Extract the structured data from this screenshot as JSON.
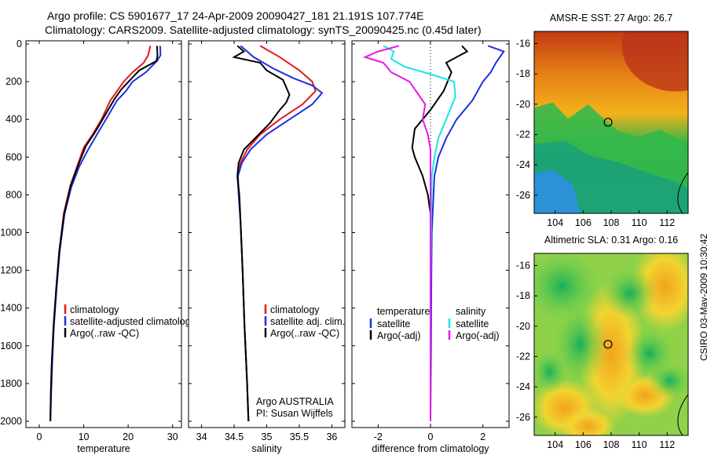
{
  "header": {
    "line1": "Argo profile: CS 5901677_17 24-Apr-2009 20090427_181 21.191S 107.774E",
    "line2": "Climatology: CARS2009. Satellite-adjusted climatology: synTS_20090425.nc (0.45d later)"
  },
  "side_text": "CSIRO 03-May-2009 10:30:42",
  "colors": {
    "climatology": "#e31a1c",
    "satellite": "#1f2fe0",
    "argo": "#000000",
    "temperature_sat": "#1f2fe0",
    "salinity_sat": "#19e6e6",
    "salinity_argo": "#e61ae6"
  },
  "chart_data": [
    {
      "type": "line",
      "id": "temperature",
      "xlabel": "temperature",
      "ylabel": "",
      "xlim": [
        -3,
        32
      ],
      "ylim": [
        2050,
        0
      ],
      "xticks": [
        0,
        10,
        20,
        30
      ],
      "yticks": [
        0,
        200,
        400,
        600,
        800,
        1000,
        1200,
        1400,
        1600,
        1800,
        2000
      ],
      "legend_position": "lower-right",
      "legend": [
        "climatology",
        "satellite-adjusted climatology",
        "Argo(..raw -QC)"
      ],
      "series": [
        {
          "name": "climatology",
          "color": "#e31a1c",
          "points": [
            [
              25.0,
              10
            ],
            [
              24.5,
              60
            ],
            [
              23.5,
              100
            ],
            [
              21.0,
              150
            ],
            [
              19.0,
              200
            ],
            [
              17.5,
              250
            ],
            [
              16.0,
              300
            ],
            [
              14.0,
              400
            ],
            [
              12.0,
              480
            ],
            [
              10.0,
              550
            ],
            [
              8.5,
              650
            ],
            [
              7.0,
              750
            ],
            [
              5.5,
              900
            ],
            [
              4.5,
              1100
            ],
            [
              3.8,
              1300
            ],
            [
              3.2,
              1500
            ],
            [
              2.8,
              1700
            ],
            [
              2.6,
              1850
            ],
            [
              2.5,
              2000
            ]
          ]
        },
        {
          "name": "satellite-adjusted climatology",
          "color": "#1f2fe0",
          "points": [
            [
              27.2,
              10
            ],
            [
              27.3,
              60
            ],
            [
              26.5,
              90
            ],
            [
              24.0,
              150
            ],
            [
              21.0,
              200
            ],
            [
              19.5,
              250
            ],
            [
              17.5,
              300
            ],
            [
              15.0,
              400
            ],
            [
              13.0,
              480
            ],
            [
              11.0,
              560
            ],
            [
              9.0,
              650
            ],
            [
              7.2,
              760
            ],
            [
              5.7,
              900
            ],
            [
              4.6,
              1100
            ],
            [
              3.9,
              1300
            ],
            [
              3.3,
              1500
            ],
            [
              2.9,
              1700
            ],
            [
              2.7,
              1850
            ],
            [
              2.5,
              2000
            ]
          ]
        },
        {
          "name": "Argo(..raw -QC)",
          "color": "#000000",
          "points": [
            [
              26.5,
              10
            ],
            [
              26.6,
              60
            ],
            [
              26.4,
              90
            ],
            [
              22.5,
              140
            ],
            [
              20.5,
              190
            ],
            [
              18.5,
              240
            ],
            [
              17.0,
              290
            ],
            [
              14.5,
              390
            ],
            [
              12.5,
              470
            ],
            [
              10.5,
              540
            ],
            [
              8.8,
              640
            ],
            [
              7.1,
              750
            ],
            [
              5.6,
              900
            ],
            [
              4.5,
              1100
            ],
            [
              3.8,
              1300
            ],
            [
              3.2,
              1500
            ],
            [
              2.8,
              1700
            ],
            [
              2.6,
              1850
            ],
            [
              2.5,
              2000
            ]
          ]
        }
      ]
    },
    {
      "type": "line",
      "id": "salinity",
      "xlabel": "salinity",
      "ylabel": "",
      "xlim": [
        33.8,
        36.2
      ],
      "ylim": [
        2050,
        0
      ],
      "xticks": [
        34,
        34.5,
        35,
        35.5,
        36
      ],
      "legend_position": "lower-right",
      "legend": [
        "climatology",
        "satellite adj. clim.",
        "Argo(..raw -QC)"
      ],
      "annotation": [
        "Argo AUSTRALIA",
        "PI: Susan Wijffels"
      ],
      "series": [
        {
          "name": "climatology",
          "color": "#e31a1c",
          "points": [
            [
              34.9,
              10
            ],
            [
              35.2,
              70
            ],
            [
              35.5,
              140
            ],
            [
              35.7,
              200
            ],
            [
              35.75,
              250
            ],
            [
              35.55,
              320
            ],
            [
              35.2,
              400
            ],
            [
              34.9,
              480
            ],
            [
              34.7,
              560
            ],
            [
              34.6,
              630
            ],
            [
              34.55,
              700
            ],
            [
              34.57,
              800
            ],
            [
              34.6,
              950
            ],
            [
              34.63,
              1200
            ],
            [
              34.66,
              1500
            ],
            [
              34.7,
              1800
            ],
            [
              34.72,
              2000
            ]
          ]
        },
        {
          "name": "satellite adj. clim.",
          "color": "#1f2fe0",
          "points": [
            [
              34.6,
              10
            ],
            [
              34.8,
              70
            ],
            [
              35.1,
              130
            ],
            [
              35.4,
              180
            ],
            [
              35.7,
              220
            ],
            [
              35.85,
              260
            ],
            [
              35.7,
              320
            ],
            [
              35.35,
              400
            ],
            [
              35.0,
              480
            ],
            [
              34.75,
              560
            ],
            [
              34.62,
              630
            ],
            [
              34.56,
              700
            ],
            [
              34.57,
              800
            ],
            [
              34.6,
              950
            ],
            [
              34.63,
              1200
            ],
            [
              34.66,
              1500
            ],
            [
              34.7,
              1800
            ],
            [
              34.72,
              2000
            ]
          ]
        },
        {
          "name": "Argo(..raw -QC)",
          "color": "#000000",
          "points": [
            [
              34.55,
              10
            ],
            [
              34.65,
              40
            ],
            [
              34.5,
              70
            ],
            [
              34.9,
              100
            ],
            [
              35.0,
              140
            ],
            [
              35.25,
              190
            ],
            [
              35.3,
              230
            ],
            [
              35.35,
              270
            ],
            [
              35.3,
              310
            ],
            [
              35.2,
              350
            ],
            [
              35.05,
              420
            ],
            [
              34.85,
              490
            ],
            [
              34.65,
              560
            ],
            [
              34.57,
              630
            ],
            [
              34.55,
              700
            ],
            [
              34.58,
              800
            ],
            [
              34.6,
              950
            ],
            [
              34.63,
              1200
            ],
            [
              34.66,
              1500
            ],
            [
              34.7,
              1800
            ],
            [
              34.72,
              2000
            ]
          ]
        }
      ]
    },
    {
      "type": "line",
      "id": "difference",
      "xlabel": "difference from climatology",
      "ylabel": "",
      "xlim": [
        -3,
        3
      ],
      "ylim": [
        2050,
        0
      ],
      "xticks": [
        -2,
        0,
        2
      ],
      "legend_position": "lower-right",
      "legend_groups": [
        {
          "title": "temperature",
          "items": [
            "satellite",
            "Argo(-adj)"
          ]
        },
        {
          "title": "salinity",
          "items": [
            "satellite",
            "Argo(-adj)"
          ]
        }
      ],
      "series": [
        {
          "name": "temperature satellite",
          "color": "#1f2fe0",
          "points": [
            [
              2.2,
              10
            ],
            [
              2.8,
              40
            ],
            [
              2.5,
              100
            ],
            [
              2.3,
              150
            ],
            [
              2.0,
              200
            ],
            [
              1.6,
              300
            ],
            [
              1.0,
              400
            ],
            [
              0.6,
              500
            ],
            [
              0.3,
              600
            ],
            [
              0.15,
              700
            ],
            [
              0.1,
              850
            ],
            [
              0.05,
              1000
            ],
            [
              0.03,
              1300
            ],
            [
              0.02,
              1600
            ],
            [
              0.0,
              2000
            ]
          ]
        },
        {
          "name": "temperature Argo(-adj)",
          "color": "#000000",
          "points": [
            [
              1.2,
              10
            ],
            [
              1.4,
              40
            ],
            [
              1.0,
              70
            ],
            [
              0.6,
              100
            ],
            [
              0.8,
              150
            ],
            [
              0.5,
              250
            ],
            [
              0.0,
              350
            ],
            [
              -0.6,
              450
            ],
            [
              -0.7,
              550
            ],
            [
              -0.6,
              600
            ],
            [
              -0.3,
              700
            ],
            [
              -0.1,
              800
            ],
            [
              0.0,
              900
            ],
            [
              0.0,
              1300
            ],
            [
              0.0,
              1600
            ],
            [
              0.0,
              2000
            ]
          ]
        },
        {
          "name": "salinity satellite",
          "color": "#19e6e6",
          "points": [
            [
              -1.8,
              10
            ],
            [
              -1.4,
              40
            ],
            [
              -1.5,
              80
            ],
            [
              -1.0,
              120
            ],
            [
              0.0,
              160
            ],
            [
              0.9,
              200
            ],
            [
              0.95,
              280
            ],
            [
              0.6,
              400
            ],
            [
              0.3,
              500
            ],
            [
              0.15,
              600
            ],
            [
              0.05,
              700
            ],
            [
              0.03,
              850
            ],
            [
              0.02,
              1000
            ],
            [
              0.0,
              1300
            ],
            [
              0.0,
              1600
            ],
            [
              0.0,
              2000
            ]
          ]
        },
        {
          "name": "salinity Argo(-adj)",
          "color": "#e61ae6",
          "points": [
            [
              -1.2,
              10
            ],
            [
              -2.0,
              40
            ],
            [
              -2.5,
              70
            ],
            [
              -1.8,
              100
            ],
            [
              -1.5,
              150
            ],
            [
              -0.8,
              200
            ],
            [
              -0.5,
              260
            ],
            [
              -0.2,
              320
            ],
            [
              -0.3,
              400
            ],
            [
              -0.1,
              480
            ],
            [
              0.0,
              560
            ],
            [
              0.0,
              700
            ],
            [
              0.0,
              900
            ],
            [
              0.0,
              1300
            ],
            [
              0.0,
              1600
            ],
            [
              0.0,
              2000
            ]
          ]
        }
      ]
    },
    {
      "type": "heatmap",
      "id": "sst-map",
      "title": "AMSR-E SST: 27 Argo: 26.7",
      "xlim": [
        102.5,
        113.5
      ],
      "ylim": [
        -27.2,
        -15.2
      ],
      "xticks": [
        104,
        106,
        108,
        110,
        112
      ],
      "yticks": [
        -16,
        -18,
        -20,
        -22,
        -24,
        -26
      ],
      "marker": {
        "lon": 107.774,
        "lat": -21.191
      }
    },
    {
      "type": "heatmap",
      "id": "sla-map",
      "title": "Altimetric SLA: 0.31 Argo: 0.16",
      "xlim": [
        102.5,
        113.5
      ],
      "ylim": [
        -27.2,
        -15.2
      ],
      "xticks": [
        104,
        106,
        108,
        110,
        112
      ],
      "yticks": [
        -16,
        -18,
        -20,
        -22,
        -24,
        -26
      ],
      "marker": {
        "lon": 107.774,
        "lat": -21.191
      }
    }
  ]
}
